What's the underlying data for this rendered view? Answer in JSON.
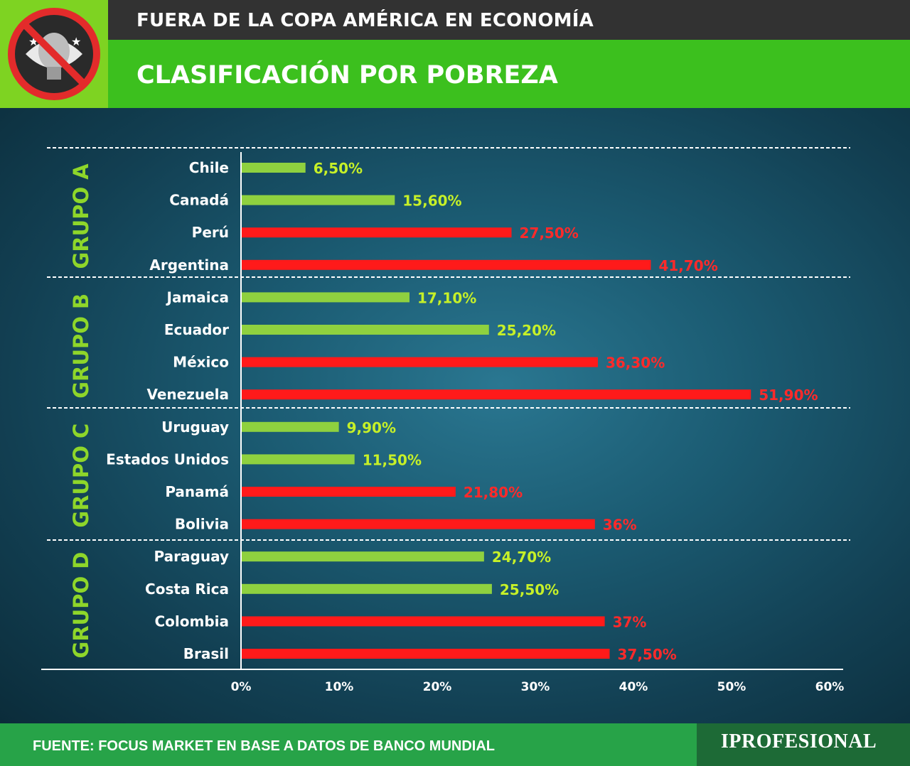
{
  "header": {
    "title": "FUERA DE LA COPA AMÉRICA EN ECONOMÍA",
    "subtitle": "CLASIFICACIÓN POR POBREZA",
    "logo_icon": "no-copa-america-logo-icon"
  },
  "footer": {
    "source": "FUENTE: FOCUS MARKET EN BASE A DATOS DE BANCO MUNDIAL",
    "brand": "IPROFESIONAL"
  },
  "colors": {
    "low": "#8fd13f",
    "high": "#ff1a1a",
    "low_label": "#c6f028",
    "high_label": "#ff2a2a",
    "group_label": "#8ed62a"
  },
  "chart_data": {
    "type": "bar",
    "orientation": "horizontal",
    "xlim": [
      0,
      60
    ],
    "xticks": [
      "0%",
      "10%",
      "20%",
      "30%",
      "40%",
      "50%",
      "60%"
    ],
    "grid": false,
    "groups": [
      {
        "name": "GRUPO A",
        "items": [
          {
            "country": "Chile",
            "value": 6.5,
            "label": "6,50%",
            "level": "low"
          },
          {
            "country": "Canadá",
            "value": 15.6,
            "label": "15,60%",
            "level": "low"
          },
          {
            "country": "Perú",
            "value": 27.5,
            "label": "27,50%",
            "level": "high"
          },
          {
            "country": "Argentina",
            "value": 41.7,
            "label": "41,70%",
            "level": "high"
          }
        ]
      },
      {
        "name": "GRUPO B",
        "items": [
          {
            "country": "Jamaica",
            "value": 17.1,
            "label": "17,10%",
            "level": "low"
          },
          {
            "country": "Ecuador",
            "value": 25.2,
            "label": "25,20%",
            "level": "low"
          },
          {
            "country": "México",
            "value": 36.3,
            "label": "36,30%",
            "level": "high"
          },
          {
            "country": "Venezuela",
            "value": 51.9,
            "label": "51,90%",
            "level": "high"
          }
        ]
      },
      {
        "name": "GRUPO C",
        "items": [
          {
            "country": "Uruguay",
            "value": 9.9,
            "label": "9,90%",
            "level": "low"
          },
          {
            "country": "Estados Unidos",
            "value": 11.5,
            "label": "11,50%",
            "level": "low"
          },
          {
            "country": "Panamá",
            "value": 21.8,
            "label": "21,80%",
            "level": "high"
          },
          {
            "country": "Bolivia",
            "value": 36,
            "label": "36%",
            "level": "high"
          }
        ]
      },
      {
        "name": "GRUPO D",
        "items": [
          {
            "country": "Paraguay",
            "value": 24.7,
            "label": "24,70%",
            "level": "low"
          },
          {
            "country": "Costa Rica",
            "value": 25.5,
            "label": "25,50%",
            "level": "low"
          },
          {
            "country": "Colombia",
            "value": 37,
            "label": "37%",
            "level": "high"
          },
          {
            "country": "Brasil",
            "value": 37.5,
            "label": "37,50%",
            "level": "high"
          }
        ]
      }
    ]
  }
}
